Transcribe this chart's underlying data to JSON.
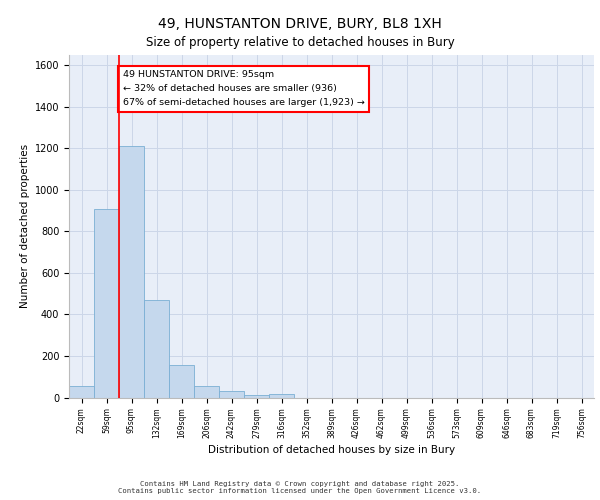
{
  "title_line1": "49, HUNSTANTON DRIVE, BURY, BL8 1XH",
  "title_line2": "Size of property relative to detached houses in Bury",
  "xlabel": "Distribution of detached houses by size in Bury",
  "ylabel": "Number of detached properties",
  "bar_labels": [
    "22sqm",
    "59sqm",
    "95sqm",
    "132sqm",
    "169sqm",
    "206sqm",
    "242sqm",
    "279sqm",
    "316sqm",
    "352sqm",
    "389sqm",
    "426sqm",
    "462sqm",
    "499sqm",
    "536sqm",
    "573sqm",
    "609sqm",
    "646sqm",
    "683sqm",
    "719sqm",
    "756sqm"
  ],
  "bar_values": [
    55,
    910,
    1210,
    470,
    155,
    55,
    30,
    12,
    18,
    0,
    0,
    0,
    0,
    0,
    0,
    0,
    0,
    0,
    0,
    0,
    0
  ],
  "bar_color": "#c5d8ed",
  "bar_edge_color": "#7aafd4",
  "grid_color": "#ccd6e8",
  "background_color": "#e8eef8",
  "annotation_text": "49 HUNSTANTON DRIVE: 95sqm\n← 32% of detached houses are smaller (936)\n67% of semi-detached houses are larger (1,923) →",
  "annotation_box_color": "white",
  "annotation_box_edge": "red",
  "redline_x": 2,
  "ylim": [
    0,
    1650
  ],
  "yticks": [
    0,
    200,
    400,
    600,
    800,
    1000,
    1200,
    1400,
    1600
  ],
  "footer_line1": "Contains HM Land Registry data © Crown copyright and database right 2025.",
  "footer_line2": "Contains public sector information licensed under the Open Government Licence v3.0."
}
